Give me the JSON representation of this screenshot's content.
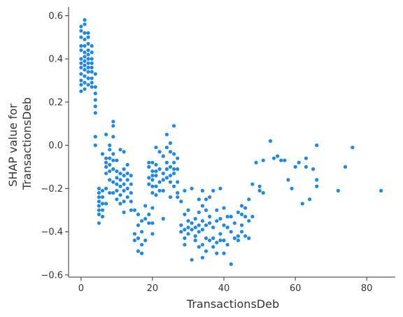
{
  "chart_data": {
    "type": "scatter",
    "title": "",
    "xlabel": "TransactionsDeb",
    "ylabel_lines": [
      "SHAP value for",
      "TransactionsDeb"
    ],
    "xlim": [
      -3.5,
      88
    ],
    "ylim": [
      -0.61,
      0.64
    ],
    "xticks": [
      0,
      20,
      40,
      60,
      80
    ],
    "yticks": [
      -0.6,
      -0.4,
      -0.2,
      0.0,
      0.2,
      0.4,
      0.6
    ],
    "ytick_labels": [
      "−0.6",
      "−0.4",
      "−0.2",
      "0.0",
      "0.2",
      "0.4",
      "0.6"
    ],
    "grid": false,
    "point_color": "#1e88e5",
    "series": [
      {
        "points": [
          [
            0,
            0.55
          ],
          [
            0,
            0.53
          ],
          [
            0,
            0.5
          ],
          [
            0,
            0.46
          ],
          [
            0,
            0.44
          ],
          [
            0,
            0.4
          ],
          [
            0,
            0.38
          ],
          [
            0,
            0.36
          ],
          [
            0,
            0.33
          ],
          [
            0,
            0.3
          ],
          [
            0,
            0.28
          ],
          [
            0,
            0.25
          ],
          [
            1,
            0.58
          ],
          [
            1,
            0.56
          ],
          [
            1,
            0.52
          ],
          [
            1,
            0.49
          ],
          [
            1,
            0.46
          ],
          [
            1,
            0.43
          ],
          [
            1,
            0.41
          ],
          [
            1,
            0.39
          ],
          [
            1,
            0.37
          ],
          [
            1,
            0.35
          ],
          [
            1,
            0.32
          ],
          [
            1,
            0.29
          ],
          [
            1,
            0.26
          ],
          [
            2,
            0.52
          ],
          [
            2,
            0.5
          ],
          [
            2,
            0.47
          ],
          [
            2,
            0.44
          ],
          [
            2,
            0.42
          ],
          [
            2,
            0.4
          ],
          [
            2,
            0.38
          ],
          [
            2,
            0.36
          ],
          [
            2,
            0.34
          ],
          [
            2,
            0.31
          ],
          [
            2,
            0.28
          ],
          [
            3,
            0.46
          ],
          [
            3,
            0.43
          ],
          [
            3,
            0.4
          ],
          [
            3,
            0.38
          ],
          [
            3,
            0.36
          ],
          [
            3,
            0.34
          ],
          [
            3,
            0.31
          ],
          [
            3,
            0.29
          ],
          [
            3,
            0.27
          ],
          [
            4,
            0.33
          ],
          [
            4,
            0.27
          ],
          [
            4,
            0.24
          ],
          [
            4,
            0.21
          ],
          [
            4,
            0.18
          ],
          [
            4,
            0.15
          ],
          [
            4,
            0.04
          ],
          [
            4,
            0.0
          ],
          [
            5,
            -0.2
          ],
          [
            5,
            -0.22
          ],
          [
            5,
            -0.24
          ],
          [
            5,
            -0.26
          ],
          [
            5,
            -0.28
          ],
          [
            5,
            -0.3
          ],
          [
            5,
            -0.32
          ],
          [
            5,
            -0.36
          ],
          [
            6,
            -0.21
          ],
          [
            6,
            -0.24
          ],
          [
            6,
            -0.27
          ],
          [
            6,
            -0.3
          ],
          [
            6,
            -0.33
          ],
          [
            6,
            -0.04
          ],
          [
            7,
            -0.06
          ],
          [
            7,
            -0.08
          ],
          [
            7,
            -0.1
          ],
          [
            7,
            -0.13
          ],
          [
            7,
            -0.2
          ],
          [
            7,
            -0.27
          ],
          [
            7,
            0.05
          ],
          [
            8,
            -0.02
          ],
          [
            8,
            -0.06
          ],
          [
            8,
            -0.09
          ],
          [
            8,
            -0.12
          ],
          [
            8,
            -0.16
          ],
          [
            8,
            -0.22
          ],
          [
            8,
            0.0
          ],
          [
            9,
            0.11
          ],
          [
            9,
            0.09
          ],
          [
            9,
            0.04
          ],
          [
            9,
            -0.04
          ],
          [
            9,
            -0.07
          ],
          [
            9,
            -0.11
          ],
          [
            9,
            -0.17
          ],
          [
            9,
            -0.22
          ],
          [
            10,
            -0.12
          ],
          [
            10,
            -0.15
          ],
          [
            10,
            -0.18
          ],
          [
            10,
            -0.21
          ],
          [
            10,
            -0.25
          ],
          [
            10,
            -0.07
          ],
          [
            11,
            -0.02
          ],
          [
            11,
            -0.13
          ],
          [
            11,
            -0.16
          ],
          [
            11,
            -0.19
          ],
          [
            11,
            -0.23
          ],
          [
            11,
            -0.27
          ],
          [
            12,
            -0.03
          ],
          [
            12,
            -0.11
          ],
          [
            12,
            -0.14
          ],
          [
            12,
            -0.18
          ],
          [
            12,
            -0.21
          ],
          [
            12,
            -0.26
          ],
          [
            12,
            -0.31
          ],
          [
            13,
            -0.09
          ],
          [
            13,
            -0.13
          ],
          [
            13,
            -0.16
          ],
          [
            13,
            -0.2
          ],
          [
            13,
            -0.24
          ],
          [
            14,
            -0.14
          ],
          [
            14,
            -0.18
          ],
          [
            14,
            -0.22
          ],
          [
            14,
            -0.26
          ],
          [
            14,
            -0.3
          ],
          [
            15,
            -0.41
          ],
          [
            15,
            -0.44
          ],
          [
            15,
            -0.3
          ],
          [
            16,
            -0.37
          ],
          [
            16,
            -0.43
          ],
          [
            16,
            -0.49
          ],
          [
            16,
            -0.32
          ],
          [
            17,
            -0.35
          ],
          [
            17,
            -0.4
          ],
          [
            17,
            -0.46
          ],
          [
            17,
            -0.5
          ],
          [
            18,
            -0.28
          ],
          [
            18,
            -0.34
          ],
          [
            18,
            -0.44
          ],
          [
            19,
            -0.08
          ],
          [
            19,
            -0.1
          ],
          [
            19,
            -0.15
          ],
          [
            19,
            -0.18
          ],
          [
            19,
            -0.32
          ],
          [
            19,
            -0.36
          ],
          [
            20,
            -0.08
          ],
          [
            20,
            -0.12
          ],
          [
            20,
            -0.14
          ],
          [
            20,
            -0.16
          ],
          [
            20,
            -0.19
          ],
          [
            20,
            -0.22
          ],
          [
            20,
            -0.29
          ],
          [
            20,
            -0.36
          ],
          [
            20,
            -0.41
          ],
          [
            21,
            -0.01
          ],
          [
            21,
            -0.09
          ],
          [
            21,
            -0.12
          ],
          [
            21,
            -0.14
          ],
          [
            21,
            -0.19
          ],
          [
            21,
            -0.23
          ],
          [
            22,
            -0.03
          ],
          [
            22,
            -0.11
          ],
          [
            22,
            -0.17
          ],
          [
            22,
            -0.21
          ],
          [
            23,
            -0.05
          ],
          [
            23,
            -0.13
          ],
          [
            23,
            -0.16
          ],
          [
            23,
            -0.21
          ],
          [
            23,
            -0.34
          ],
          [
            24,
            0.05
          ],
          [
            24,
            -0.01
          ],
          [
            24,
            -0.08
          ],
          [
            24,
            -0.11
          ],
          [
            24,
            -0.15
          ],
          [
            25,
            0.01
          ],
          [
            25,
            -0.03
          ],
          [
            25,
            -0.1
          ],
          [
            25,
            -0.14
          ],
          [
            25,
            -0.17
          ],
          [
            25,
            -0.24
          ],
          [
            26,
            -0.04
          ],
          [
            26,
            -0.08
          ],
          [
            26,
            -0.11
          ],
          [
            26,
            -0.13
          ],
          [
            26,
            -0.19
          ],
          [
            26,
            0.09
          ],
          [
            27,
            -0.06
          ],
          [
            27,
            -0.11
          ],
          [
            27,
            -0.17
          ],
          [
            27,
            -0.22
          ],
          [
            27,
            -0.24
          ],
          [
            28,
            -0.26
          ],
          [
            28,
            -0.37
          ],
          [
            28,
            -0.4
          ],
          [
            29,
            -0.21
          ],
          [
            29,
            -0.32
          ],
          [
            29,
            -0.39
          ],
          [
            29,
            -0.43
          ],
          [
            29,
            -0.46
          ],
          [
            30,
            -0.3
          ],
          [
            30,
            -0.35
          ],
          [
            30,
            -0.38
          ],
          [
            30,
            -0.41
          ],
          [
            31,
            -0.2
          ],
          [
            31,
            -0.36
          ],
          [
            31,
            -0.39
          ],
          [
            31,
            -0.53
          ],
          [
            32,
            -0.34
          ],
          [
            32,
            -0.38
          ],
          [
            32,
            -0.42
          ],
          [
            32,
            -0.44
          ],
          [
            33,
            -0.25
          ],
          [
            33,
            -0.31
          ],
          [
            33,
            -0.37
          ],
          [
            33,
            -0.4
          ],
          [
            33,
            -0.47
          ],
          [
            34,
            -0.21
          ],
          [
            34,
            -0.28
          ],
          [
            34,
            -0.35
          ],
          [
            34,
            -0.39
          ],
          [
            34,
            -0.46
          ],
          [
            34,
            -0.52
          ],
          [
            35,
            -0.25
          ],
          [
            35,
            -0.3
          ],
          [
            35,
            -0.37
          ],
          [
            35,
            -0.43
          ],
          [
            35,
            -0.49
          ],
          [
            36,
            -0.24
          ],
          [
            36,
            -0.33
          ],
          [
            36,
            -0.36
          ],
          [
            36,
            -0.44
          ],
          [
            37,
            -0.21
          ],
          [
            37,
            -0.38
          ],
          [
            37,
            -0.43
          ],
          [
            37,
            -0.47
          ],
          [
            38,
            -0.3
          ],
          [
            38,
            -0.35
          ],
          [
            38,
            -0.45
          ],
          [
            38,
            -0.5
          ],
          [
            39,
            -0.2
          ],
          [
            39,
            -0.34
          ],
          [
            39,
            -0.41
          ],
          [
            39,
            -0.44
          ],
          [
            40,
            -0.29
          ],
          [
            40,
            -0.37
          ],
          [
            40,
            -0.44
          ],
          [
            40,
            -0.5
          ],
          [
            41,
            -0.33
          ],
          [
            41,
            -0.38
          ],
          [
            41,
            -0.46
          ],
          [
            42,
            -0.4
          ],
          [
            42,
            -0.55
          ],
          [
            42,
            -0.33
          ],
          [
            43,
            -0.36
          ],
          [
            43,
            -0.43
          ],
          [
            44,
            -0.31
          ],
          [
            44,
            -0.42
          ],
          [
            44,
            -0.44
          ],
          [
            45,
            -0.28
          ],
          [
            45,
            -0.32
          ],
          [
            45,
            -0.37
          ],
          [
            45,
            -0.4
          ],
          [
            46,
            -0.29
          ],
          [
            46,
            -0.33
          ],
          [
            46,
            -0.42
          ],
          [
            47,
            -0.25
          ],
          [
            47,
            -0.35
          ],
          [
            47,
            -0.43
          ],
          [
            48,
            -0.33
          ],
          [
            48,
            -0.18
          ],
          [
            49,
            -0.08
          ],
          [
            50,
            -0.19
          ],
          [
            50,
            -0.21
          ],
          [
            51,
            -0.22
          ],
          [
            51,
            -0.07
          ],
          [
            53,
            0.02
          ],
          [
            54,
            -0.06
          ],
          [
            55,
            -0.05
          ],
          [
            56,
            -0.07
          ],
          [
            57,
            -0.07
          ],
          [
            58,
            -0.16
          ],
          [
            59,
            -0.2
          ],
          [
            60,
            -0.1
          ],
          [
            61,
            -0.08
          ],
          [
            62,
            -0.27
          ],
          [
            63,
            -0.06
          ],
          [
            63,
            -0.1
          ],
          [
            64,
            -0.25
          ],
          [
            65,
            -0.11
          ],
          [
            66,
            0.0
          ],
          [
            66,
            -0.19
          ],
          [
            66,
            -0.16
          ],
          [
            72,
            -0.21
          ],
          [
            74,
            -0.1
          ],
          [
            76,
            -0.01
          ],
          [
            84,
            -0.21
          ]
        ]
      }
    ]
  }
}
